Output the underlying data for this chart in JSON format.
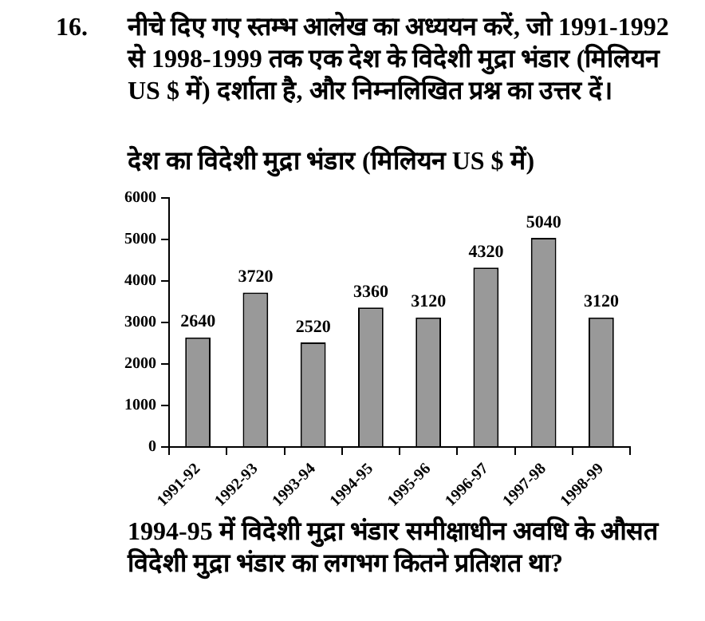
{
  "chart_data": {
    "type": "bar",
    "title": "देश का विदेशी मुद्रा भंडार (मिलियन US $ में)",
    "annotations": [
      "16.",
      "नीचे दिए गए स्तम्भ आलेख का अध्ययन करें, जो 1991-1992 से 1998-1999 तक एक देश के विदेशी मुद्रा भंडार (मिलियन US $ में) दर्शाता है, और निम्नलिखित प्रश्न का उत्तर दें।",
      "1994-95 में विदेशी मुद्रा भंडार समीक्षाधीन अवधि के औसत विदेशी मुद्रा भंडार का लगभग कितने प्रतिशत था?"
    ],
    "categories": [
      "1991-92",
      "1992-93",
      "1993-94",
      "1994-95",
      "1995-96",
      "1996-97",
      "1997-98",
      "1998-99"
    ],
    "values": [
      2640,
      3720,
      2520,
      3360,
      3120,
      4320,
      5040,
      3120
    ],
    "color": "#999999",
    "ylim": [
      0,
      6000
    ],
    "yticks": [
      0,
      1000,
      2000,
      3000,
      4000,
      5000,
      6000
    ],
    "data_labels": true
  }
}
